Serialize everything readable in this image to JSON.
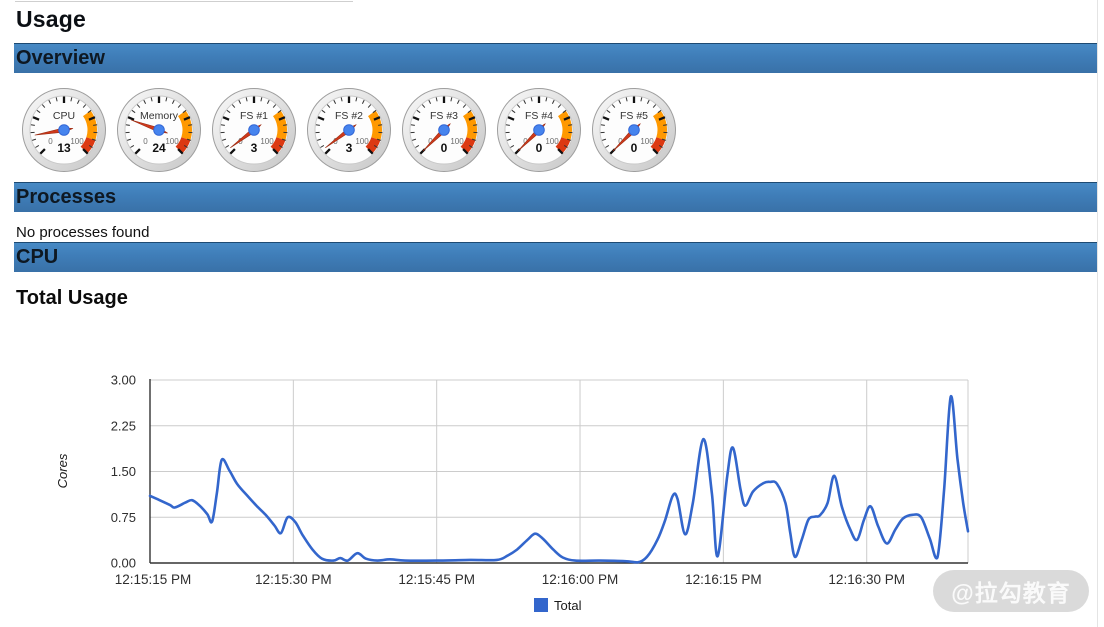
{
  "page_title": "Usage",
  "sections": {
    "overview": {
      "title": "Overview"
    },
    "processes": {
      "title": "Processes",
      "empty_message": "No processes found"
    },
    "cpu": {
      "title": "CPU",
      "subtitle": "Total Usage"
    }
  },
  "gauges": [
    {
      "label": "CPU",
      "value": 13
    },
    {
      "label": "Memory",
      "value": 24
    },
    {
      "label": "FS #1",
      "value": 3
    },
    {
      "label": "FS #2",
      "value": 3
    },
    {
      "label": "FS #3",
      "value": 0
    },
    {
      "label": "FS #4",
      "value": 0
    },
    {
      "label": "FS #5",
      "value": 0
    }
  ],
  "gauge_style": {
    "min": 0,
    "max": 100,
    "scale_min_label": "0",
    "scale_max_label": "100",
    "yellow_from": 70,
    "yellow_to": 90,
    "yellow_color": "#ff9900",
    "red_from": 90,
    "red_to": 100,
    "red_color": "#dc3912",
    "needle_color": "#d0391b",
    "needle_edge": "#9c2c12",
    "hub_color": "#4684ee",
    "hub_edge": "#3367d6"
  },
  "chart_data": {
    "type": "line",
    "title": "Total Usage",
    "xlabel": "",
    "ylabel": "Cores",
    "ylim": [
      0,
      3
    ],
    "ytick_labels": [
      "0.00",
      "0.75",
      "1.50",
      "2.25",
      "3.00"
    ],
    "xtick_labels": [
      "12:15:15 PM",
      "12:15:30 PM",
      "12:15:45 PM",
      "12:16:00 PM",
      "12:16:15 PM",
      "12:16:30 PM"
    ],
    "xtick_seconds": [
      0,
      15,
      30,
      45,
      60,
      75
    ],
    "x_range_seconds": [
      0,
      85.6
    ],
    "grid": true,
    "legend_position": "bottom",
    "series": [
      {
        "name": "Total",
        "color": "#3366cc",
        "points_t_v": [
          [
            0,
            1.1
          ],
          [
            1.0,
            1.03
          ],
          [
            2.1,
            0.95
          ],
          [
            2.6,
            0.91
          ],
          [
            3.7,
            0.99
          ],
          [
            4.4,
            1.03
          ],
          [
            5.2,
            0.94
          ],
          [
            6.0,
            0.8
          ],
          [
            6.5,
            0.68
          ],
          [
            7.0,
            1.15
          ],
          [
            7.5,
            1.69
          ],
          [
            8.3,
            1.52
          ],
          [
            9.1,
            1.3
          ],
          [
            10.2,
            1.1
          ],
          [
            11.2,
            0.93
          ],
          [
            12.1,
            0.79
          ],
          [
            13.0,
            0.62
          ],
          [
            13.7,
            0.49
          ],
          [
            14.4,
            0.75
          ],
          [
            15.2,
            0.67
          ],
          [
            16.0,
            0.45
          ],
          [
            17.0,
            0.22
          ],
          [
            18.0,
            0.07
          ],
          [
            19.2,
            0.04
          ],
          [
            19.9,
            0.08
          ],
          [
            20.7,
            0.04
          ],
          [
            21.7,
            0.16
          ],
          [
            22.6,
            0.07
          ],
          [
            23.8,
            0.04
          ],
          [
            25.1,
            0.06
          ],
          [
            26.7,
            0.04
          ],
          [
            30.0,
            0.04
          ],
          [
            33.5,
            0.05
          ],
          [
            36.3,
            0.05
          ],
          [
            37.4,
            0.12
          ],
          [
            38.4,
            0.22
          ],
          [
            39.5,
            0.38
          ],
          [
            40.3,
            0.48
          ],
          [
            41.1,
            0.4
          ],
          [
            42.2,
            0.22
          ],
          [
            43.2,
            0.09
          ],
          [
            44.5,
            0.04
          ],
          [
            47.1,
            0.04
          ],
          [
            49.7,
            0.03
          ],
          [
            51.0,
            0.01
          ],
          [
            52.0,
            0.1
          ],
          [
            53.1,
            0.38
          ],
          [
            53.9,
            0.7
          ],
          [
            54.7,
            1.1
          ],
          [
            55.2,
            1.05
          ],
          [
            56.0,
            0.47
          ],
          [
            56.8,
            0.98
          ],
          [
            57.9,
            2.03
          ],
          [
            58.8,
            1.14
          ],
          [
            59.4,
            0.11
          ],
          [
            60.4,
            1.42
          ],
          [
            61.0,
            1.89
          ],
          [
            61.8,
            1.2
          ],
          [
            62.3,
            0.94
          ],
          [
            63.1,
            1.17
          ],
          [
            64.2,
            1.31
          ],
          [
            64.9,
            1.33
          ],
          [
            65.6,
            1.3
          ],
          [
            66.5,
            0.98
          ],
          [
            67.0,
            0.49
          ],
          [
            67.5,
            0.1
          ],
          [
            68.2,
            0.38
          ],
          [
            68.9,
            0.71
          ],
          [
            69.6,
            0.76
          ],
          [
            70.1,
            0.78
          ],
          [
            70.9,
            0.98
          ],
          [
            71.6,
            1.43
          ],
          [
            72.4,
            0.92
          ],
          [
            73.3,
            0.54
          ],
          [
            74.0,
            0.38
          ],
          [
            74.7,
            0.7
          ],
          [
            75.4,
            0.93
          ],
          [
            76.2,
            0.6
          ],
          [
            77.1,
            0.32
          ],
          [
            78.0,
            0.55
          ],
          [
            78.8,
            0.73
          ],
          [
            79.8,
            0.79
          ],
          [
            80.7,
            0.75
          ],
          [
            81.6,
            0.4
          ],
          [
            82.4,
            0.09
          ],
          [
            83.1,
            1.2
          ],
          [
            83.8,
            2.73
          ],
          [
            84.5,
            1.7
          ],
          [
            85.1,
            0.98
          ],
          [
            85.6,
            0.52
          ]
        ]
      }
    ]
  },
  "watermark": {
    "text": "@拉勾教育"
  }
}
